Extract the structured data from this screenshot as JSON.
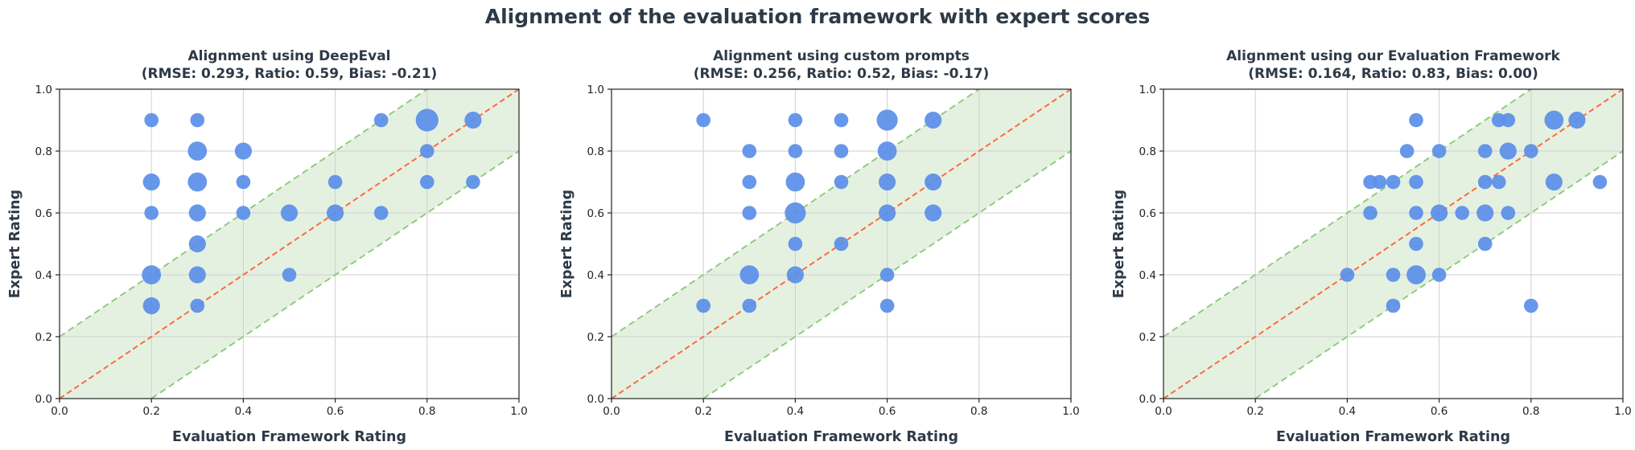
{
  "figure": {
    "title": "Alignment of the evaluation framework with expert scores",
    "colors": {
      "point": "#5b8fe8",
      "identity_line": "#ff6a3d",
      "band_fill": "#e4f1e1",
      "band_edge": "#8fcc80",
      "text": "#2e3a46"
    }
  },
  "chart_data": [
    {
      "type": "scatter",
      "title_line1": "Alignment using DeepEval",
      "title_line2": "(RMSE: 0.293, Ratio: 0.59, Bias: -0.21)",
      "xlabel": "Evaluation Framework Rating",
      "ylabel": "Expert Rating",
      "xlim": [
        0,
        1
      ],
      "ylim": [
        0,
        1
      ],
      "xticks": [
        "0.0",
        "0.2",
        "0.4",
        "0.6",
        "0.8",
        "1.0"
      ],
      "yticks": [
        "0.0",
        "0.2",
        "0.4",
        "0.6",
        "0.8",
        "1.0"
      ],
      "grid": true,
      "tolerance_band": 0.2,
      "identity_line": true,
      "points": [
        {
          "x": 0.2,
          "y": 0.9,
          "count": 1
        },
        {
          "x": 0.3,
          "y": 0.9,
          "count": 1
        },
        {
          "x": 0.8,
          "y": 0.9,
          "count": 5
        },
        {
          "x": 0.9,
          "y": 0.9,
          "count": 2
        },
        {
          "x": 0.7,
          "y": 0.9,
          "count": 1
        },
        {
          "x": 0.3,
          "y": 0.8,
          "count": 3
        },
        {
          "x": 0.4,
          "y": 0.8,
          "count": 2
        },
        {
          "x": 0.8,
          "y": 0.8,
          "count": 1
        },
        {
          "x": 0.2,
          "y": 0.7,
          "count": 2
        },
        {
          "x": 0.3,
          "y": 0.7,
          "count": 3
        },
        {
          "x": 0.4,
          "y": 0.7,
          "count": 1
        },
        {
          "x": 0.6,
          "y": 0.7,
          "count": 1
        },
        {
          "x": 0.8,
          "y": 0.7,
          "count": 1
        },
        {
          "x": 0.9,
          "y": 0.7,
          "count": 1
        },
        {
          "x": 0.2,
          "y": 0.6,
          "count": 1
        },
        {
          "x": 0.3,
          "y": 0.6,
          "count": 2
        },
        {
          "x": 0.4,
          "y": 0.6,
          "count": 1
        },
        {
          "x": 0.5,
          "y": 0.6,
          "count": 2
        },
        {
          "x": 0.6,
          "y": 0.6,
          "count": 2
        },
        {
          "x": 0.7,
          "y": 0.6,
          "count": 1
        },
        {
          "x": 0.3,
          "y": 0.5,
          "count": 2
        },
        {
          "x": 0.2,
          "y": 0.4,
          "count": 3
        },
        {
          "x": 0.3,
          "y": 0.4,
          "count": 2
        },
        {
          "x": 0.5,
          "y": 0.4,
          "count": 1
        },
        {
          "x": 0.2,
          "y": 0.3,
          "count": 2
        },
        {
          "x": 0.3,
          "y": 0.3,
          "count": 1
        }
      ]
    },
    {
      "type": "scatter",
      "title_line1": "Alignment using custom prompts",
      "title_line2": "(RMSE: 0.256, Ratio: 0.52, Bias: -0.17)",
      "xlabel": "Evaluation Framework Rating",
      "ylabel": "Expert Rating",
      "xlim": [
        0,
        1
      ],
      "ylim": [
        0,
        1
      ],
      "xticks": [
        "0.0",
        "0.2",
        "0.4",
        "0.6",
        "0.8",
        "1.0"
      ],
      "yticks": [
        "0.0",
        "0.2",
        "0.4",
        "0.6",
        "0.8",
        "1.0"
      ],
      "grid": true,
      "tolerance_band": 0.2,
      "identity_line": true,
      "points": [
        {
          "x": 0.2,
          "y": 0.9,
          "count": 1
        },
        {
          "x": 0.4,
          "y": 0.9,
          "count": 1
        },
        {
          "x": 0.5,
          "y": 0.9,
          "count": 1
        },
        {
          "x": 0.6,
          "y": 0.9,
          "count": 4
        },
        {
          "x": 0.7,
          "y": 0.9,
          "count": 2
        },
        {
          "x": 0.3,
          "y": 0.8,
          "count": 1
        },
        {
          "x": 0.4,
          "y": 0.8,
          "count": 1
        },
        {
          "x": 0.5,
          "y": 0.8,
          "count": 1
        },
        {
          "x": 0.6,
          "y": 0.8,
          "count": 3
        },
        {
          "x": 0.3,
          "y": 0.7,
          "count": 1
        },
        {
          "x": 0.4,
          "y": 0.7,
          "count": 3
        },
        {
          "x": 0.5,
          "y": 0.7,
          "count": 1
        },
        {
          "x": 0.6,
          "y": 0.7,
          "count": 2
        },
        {
          "x": 0.7,
          "y": 0.7,
          "count": 2
        },
        {
          "x": 0.3,
          "y": 0.6,
          "count": 1
        },
        {
          "x": 0.4,
          "y": 0.6,
          "count": 4
        },
        {
          "x": 0.6,
          "y": 0.6,
          "count": 2
        },
        {
          "x": 0.7,
          "y": 0.6,
          "count": 2
        },
        {
          "x": 0.4,
          "y": 0.5,
          "count": 1
        },
        {
          "x": 0.5,
          "y": 0.5,
          "count": 1
        },
        {
          "x": 0.3,
          "y": 0.4,
          "count": 3
        },
        {
          "x": 0.4,
          "y": 0.4,
          "count": 2
        },
        {
          "x": 0.6,
          "y": 0.4,
          "count": 1
        },
        {
          "x": 0.2,
          "y": 0.3,
          "count": 1
        },
        {
          "x": 0.3,
          "y": 0.3,
          "count": 1
        },
        {
          "x": 0.6,
          "y": 0.3,
          "count": 1
        }
      ]
    },
    {
      "type": "scatter",
      "title_line1": "Alignment using our Evaluation Framework",
      "title_line2": "(RMSE: 0.164, Ratio: 0.83, Bias: 0.00)",
      "xlabel": "Evaluation Framework Rating",
      "ylabel": "Expert Rating",
      "xlim": [
        0,
        1
      ],
      "ylim": [
        0,
        1
      ],
      "xticks": [
        "0.0",
        "0.2",
        "0.4",
        "0.6",
        "0.8",
        "1.0"
      ],
      "yticks": [
        "0.0",
        "0.2",
        "0.4",
        "0.6",
        "0.8",
        "1.0"
      ],
      "grid": true,
      "tolerance_band": 0.2,
      "identity_line": true,
      "points": [
        {
          "x": 0.55,
          "y": 0.9,
          "count": 1
        },
        {
          "x": 0.73,
          "y": 0.9,
          "count": 1
        },
        {
          "x": 0.75,
          "y": 0.9,
          "count": 1
        },
        {
          "x": 0.85,
          "y": 0.9,
          "count": 3
        },
        {
          "x": 0.9,
          "y": 0.9,
          "count": 2
        },
        {
          "x": 0.53,
          "y": 0.8,
          "count": 1
        },
        {
          "x": 0.6,
          "y": 0.8,
          "count": 1
        },
        {
          "x": 0.7,
          "y": 0.8,
          "count": 1
        },
        {
          "x": 0.75,
          "y": 0.8,
          "count": 2
        },
        {
          "x": 0.8,
          "y": 0.8,
          "count": 1
        },
        {
          "x": 0.45,
          "y": 0.7,
          "count": 1
        },
        {
          "x": 0.47,
          "y": 0.7,
          "count": 1
        },
        {
          "x": 0.5,
          "y": 0.7,
          "count": 1
        },
        {
          "x": 0.55,
          "y": 0.7,
          "count": 1
        },
        {
          "x": 0.7,
          "y": 0.7,
          "count": 1
        },
        {
          "x": 0.73,
          "y": 0.7,
          "count": 1
        },
        {
          "x": 0.85,
          "y": 0.7,
          "count": 2
        },
        {
          "x": 0.95,
          "y": 0.7,
          "count": 1
        },
        {
          "x": 0.45,
          "y": 0.6,
          "count": 1
        },
        {
          "x": 0.55,
          "y": 0.6,
          "count": 1
        },
        {
          "x": 0.6,
          "y": 0.6,
          "count": 2
        },
        {
          "x": 0.65,
          "y": 0.6,
          "count": 1
        },
        {
          "x": 0.7,
          "y": 0.6,
          "count": 2
        },
        {
          "x": 0.75,
          "y": 0.6,
          "count": 1
        },
        {
          "x": 0.55,
          "y": 0.5,
          "count": 1
        },
        {
          "x": 0.7,
          "y": 0.5,
          "count": 1
        },
        {
          "x": 0.4,
          "y": 0.4,
          "count": 1
        },
        {
          "x": 0.5,
          "y": 0.4,
          "count": 1
        },
        {
          "x": 0.55,
          "y": 0.4,
          "count": 3
        },
        {
          "x": 0.6,
          "y": 0.4,
          "count": 1
        },
        {
          "x": 0.5,
          "y": 0.3,
          "count": 1
        },
        {
          "x": 0.8,
          "y": 0.3,
          "count": 1
        }
      ]
    }
  ]
}
